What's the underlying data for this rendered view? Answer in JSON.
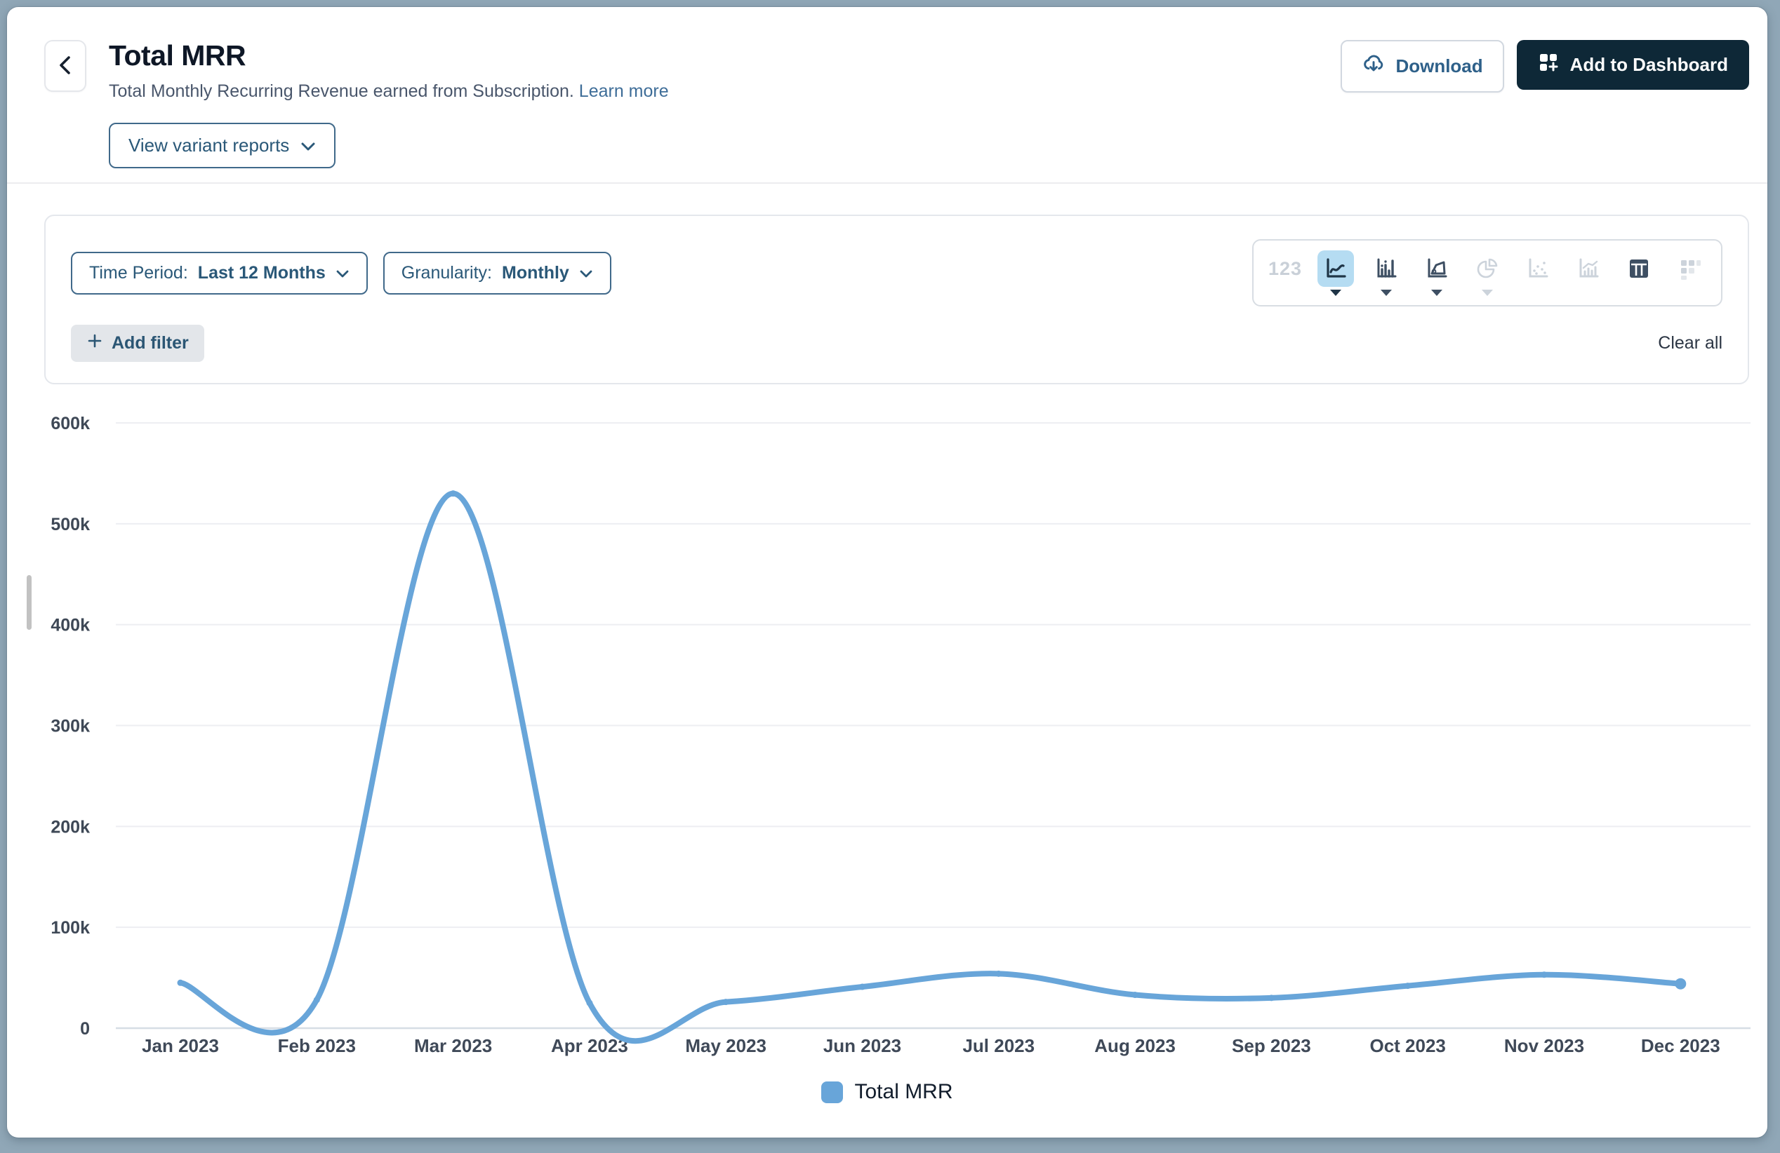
{
  "header": {
    "title": "Total MRR",
    "subtitle": "Total Monthly Recurring Revenue earned from Subscription.",
    "learn_more": "Learn more",
    "view_variant_reports": "View variant reports",
    "download": "Download",
    "add_to_dashboard": "Add to Dashboard"
  },
  "filters": {
    "time_period_label": "Time Period:",
    "time_period_value": "Last 12 Months",
    "granularity_label": "Granularity:",
    "granularity_value": "Monthly",
    "add_filter": "Add filter",
    "clear_all": "Clear all"
  },
  "toolbar": {
    "number_label": "123",
    "items": [
      {
        "name": "number-view",
        "state": "disabled"
      },
      {
        "name": "line-chart",
        "state": "active",
        "has_caret": true
      },
      {
        "name": "bar-chart",
        "state": "enabled",
        "has_caret": true
      },
      {
        "name": "area-chart",
        "state": "enabled",
        "has_caret": true
      },
      {
        "name": "pie-chart",
        "state": "disabled",
        "has_caret": true
      },
      {
        "name": "scatter-plot",
        "state": "disabled"
      },
      {
        "name": "combo-chart",
        "state": "disabled"
      },
      {
        "name": "table-view",
        "state": "enabled"
      },
      {
        "name": "pivot-table",
        "state": "disabled"
      }
    ]
  },
  "chart_data": {
    "type": "line",
    "title": "Total MRR",
    "categories": [
      "Jan 2023",
      "Feb 2023",
      "Mar 2023",
      "Apr 2023",
      "May 2023",
      "Jun 2023",
      "Jul 2023",
      "Aug 2023",
      "Sep 2023",
      "Oct 2023",
      "Nov 2023",
      "Dec 2023"
    ],
    "series": [
      {
        "name": "Total MRR",
        "values": [
          45000,
          28000,
          530000,
          25000,
          26000,
          41000,
          54000,
          33000,
          30000,
          42000,
          53000,
          44000
        ]
      }
    ],
    "ylim": [
      0,
      600000
    ],
    "ytick_step": 100000,
    "ytick_labels": [
      "0",
      "100k",
      "200k",
      "300k",
      "400k",
      "500k",
      "600k"
    ],
    "grid": true,
    "legend_position": "bottom",
    "line_color": "#68a5d9"
  },
  "colors": {
    "accent_blue": "#68a5d9",
    "active_toolbar_bg": "#b5dcf2",
    "dark_button": "#0e2837",
    "steel_blue_text": "#2a5878",
    "link_blue": "#3e6d98",
    "frame_background": "#90a7b7"
  }
}
